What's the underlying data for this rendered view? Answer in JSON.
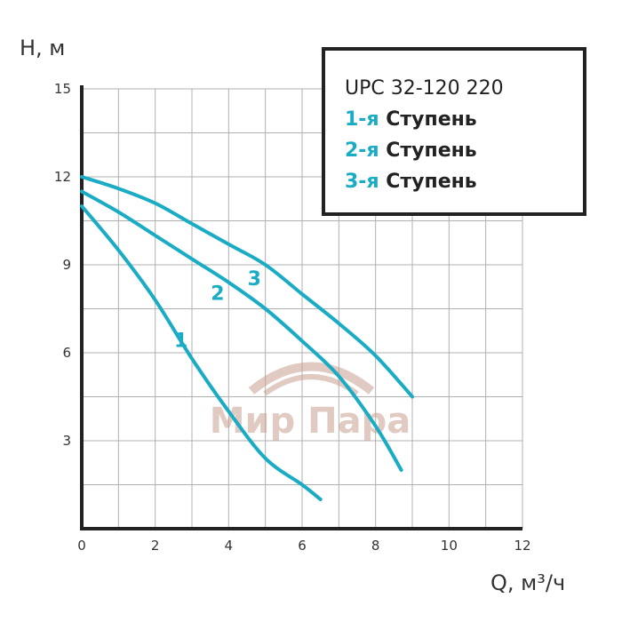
{
  "chart_data": {
    "type": "line",
    "xlabel": "Q, м³/ч",
    "ylabel": "H, м",
    "xlim": [
      0,
      12
    ],
    "ylim": [
      0,
      15
    ],
    "xticks": [
      0,
      2,
      4,
      6,
      8,
      10,
      12
    ],
    "yticks": [
      3,
      6,
      9,
      12,
      15
    ],
    "x_minor_step": 1,
    "y_minor_step": 1.5,
    "grid": true,
    "line_color": "#1aacc4",
    "series": [
      {
        "label": "1",
        "x": [
          0,
          1,
          2,
          3,
          4,
          5,
          6,
          6.5
        ],
        "y": [
          11,
          9.5,
          7.8,
          5.8,
          4.0,
          2.4,
          1.5,
          1.0
        ]
      },
      {
        "label": "2",
        "x": [
          0,
          1,
          2,
          3,
          4,
          5,
          6,
          7,
          8,
          8.7
        ],
        "y": [
          11.5,
          10.8,
          10.0,
          9.2,
          8.4,
          7.5,
          6.4,
          5.2,
          3.5,
          2.0
        ]
      },
      {
        "label": "3",
        "x": [
          0,
          1,
          2,
          3,
          4,
          5,
          6,
          7,
          8,
          9
        ],
        "y": [
          12,
          11.6,
          11.1,
          10.4,
          9.7,
          9.0,
          8.0,
          7.0,
          5.9,
          4.5
        ]
      }
    ],
    "curve_label_positions": [
      {
        "text": "1",
        "x": 2.7,
        "y": 6.2
      },
      {
        "text": "2",
        "x": 3.7,
        "y": 7.8
      },
      {
        "text": "3",
        "x": 4.7,
        "y": 8.3
      }
    ],
    "legend": {
      "placement": "top-right",
      "title": "UPC 32-120 220",
      "entries": [
        {
          "num": "1-я",
          "text": "Ступень"
        },
        {
          "num": "2-я",
          "text": "Ступень"
        },
        {
          "num": "3-я",
          "text": "Ступень"
        }
      ]
    },
    "watermark": "Мир Пара"
  }
}
